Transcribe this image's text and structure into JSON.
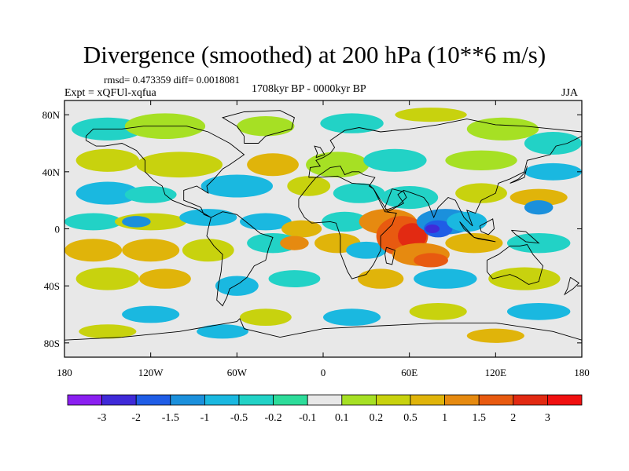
{
  "title": "Divergence (smoothed) at 200 hPa (10**6 m/s)",
  "stats": "rmsd= 0.473359 diff= 0.0018081",
  "period": "1708kyr BP - 0000kyr BP",
  "experiment": "Expt = xQFUl-xqfua",
  "season": "JJA",
  "chart_data": {
    "type": "heatmap",
    "x_ticks": [
      "180",
      "120W",
      "60W",
      "0",
      "60E",
      "120E",
      "180"
    ],
    "y_ticks": [
      "80N",
      "40N",
      "0",
      "40S",
      "80S"
    ],
    "xlim": [
      -180,
      180
    ],
    "ylim": [
      -90,
      90
    ],
    "colorbar_labels": [
      "-3",
      "-2",
      "-1.5",
      "-1",
      "-0.5",
      "-0.2",
      "-0.1",
      "0.1",
      "0.2",
      "0.5",
      "1",
      "1.5",
      "2",
      "3"
    ],
    "colors": [
      "#8a1ff0",
      "#3f2ad8",
      "#1f5de6",
      "#1b90dc",
      "#1ab8e0",
      "#22d2c6",
      "#2ddc9a",
      "#e8e8e8",
      "#a6e024",
      "#c8d20e",
      "#e0b40a",
      "#e68a10",
      "#e85a10",
      "#e22a12",
      "#f01010"
    ]
  }
}
